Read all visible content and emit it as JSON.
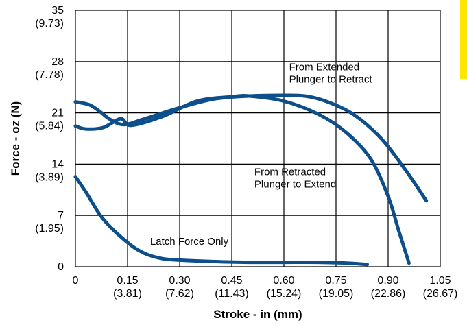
{
  "chart_data": {
    "type": "line",
    "title": "",
    "xlabel": "Stroke - in (mm)",
    "ylabel": "Force - oz (N)",
    "xlim": [
      0,
      1.05
    ],
    "ylim": [
      0,
      35
    ],
    "grid": true,
    "x_ticks": [
      {
        "value": 0,
        "label": "0",
        "sub": ""
      },
      {
        "value": 0.15,
        "label": "0.15",
        "sub": "(3.81)"
      },
      {
        "value": 0.3,
        "label": "0.30",
        "sub": "(7.62)"
      },
      {
        "value": 0.45,
        "label": "0.45",
        "sub": "(11.43)"
      },
      {
        "value": 0.6,
        "label": "0.60",
        "sub": "(15.24)"
      },
      {
        "value": 0.75,
        "label": "0.75",
        "sub": "(19.05)"
      },
      {
        "value": 0.9,
        "label": "0.90",
        "sub": "(22.86)"
      },
      {
        "value": 1.05,
        "label": "1.05",
        "sub": "(26.67)"
      }
    ],
    "y_ticks": [
      {
        "value": 0,
        "label": "0",
        "sub": ""
      },
      {
        "value": 7,
        "label": "7",
        "sub": "(1.95)"
      },
      {
        "value": 14,
        "label": "14",
        "sub": "(3.89)"
      },
      {
        "value": 21,
        "label": "21",
        "sub": "(5.84)"
      },
      {
        "value": 28,
        "label": "28",
        "sub": "(7.78)"
      },
      {
        "value": 35,
        "label": "35",
        "sub": "(9.73)"
      }
    ],
    "series": [
      {
        "name": "",
        "color": "#0d4f8b",
        "x": [
          0,
          0.03,
          0.08,
          0.13,
          0.16,
          0.25,
          0.35,
          0.45,
          0.5,
          0.6,
          0.7,
          0.78,
          0.85,
          0.9,
          0.93,
          0.96
        ],
        "y": [
          19.2,
          18.8,
          19.0,
          20.2,
          19.3,
          20.5,
          22.6,
          23.2,
          23.3,
          22.6,
          20.8,
          18.3,
          14.7,
          9.6,
          5.0,
          0.5
        ]
      },
      {
        "name": "",
        "color": "#0d4f8b",
        "x": [
          0,
          0.04,
          0.07,
          0.1,
          0.14,
          0.2,
          0.3,
          0.4,
          0.5,
          0.6,
          0.66,
          0.72,
          0.8,
          0.88,
          0.95,
          1.01
        ],
        "y": [
          22.5,
          22.1,
          21.2,
          20.1,
          19.4,
          20.2,
          21.7,
          22.9,
          23.3,
          23.4,
          23.3,
          22.6,
          20.8,
          17.5,
          13.2,
          9.0
        ]
      },
      {
        "name": "",
        "color": "#0d4f8b",
        "x": [
          0,
          0.03,
          0.08,
          0.15,
          0.2,
          0.25,
          0.3,
          0.4,
          0.5,
          0.6,
          0.7,
          0.78,
          0.84
        ],
        "y": [
          12.3,
          10.2,
          6.5,
          3.3,
          1.8,
          1.1,
          0.9,
          0.7,
          0.6,
          0.6,
          0.6,
          0.5,
          0.3
        ]
      }
    ],
    "annotations": [
      {
        "lines": [
          "From Extended",
          "Plunger to Retract"
        ],
        "x": 0.615,
        "y": 26.8
      },
      {
        "lines": [
          "From Retracted",
          "Plunger to Extend"
        ],
        "x": 0.515,
        "y": 12.5
      },
      {
        "lines": [
          "Latch Force Only"
        ],
        "x": 0.215,
        "y": 3.0
      }
    ]
  },
  "accent_color": "#ffe600"
}
